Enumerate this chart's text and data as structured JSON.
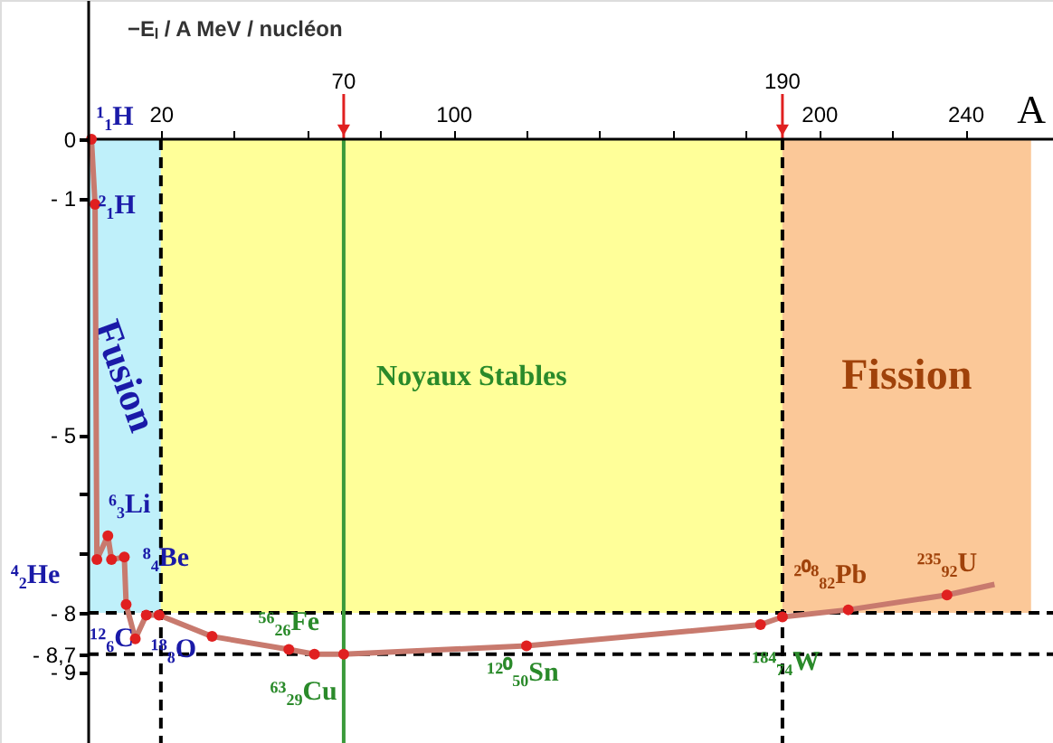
{
  "chart_data": {
    "type": "scatter",
    "xlabel": "A",
    "ylabel": "−Eₗ / A   MeV / nucléon",
    "xlim": [
      -24,
      264
    ],
    "ylim": [
      -10.2,
      2.35
    ],
    "xticks": [
      20,
      {
        "value": 40,
        "label": null
      },
      {
        "value": 60,
        "label": null
      },
      {
        "value": 80,
        "label": null
      },
      100,
      {
        "value": 120,
        "label": null
      },
      {
        "value": 140,
        "label": null
      },
      {
        "value": 160,
        "label": null
      },
      {
        "value": 180,
        "label": null
      },
      200,
      {
        "value": 220,
        "label": null
      },
      240
    ],
    "yticks": [
      0,
      {
        "value": -1,
        "label": "- 1"
      },
      {
        "value": -5,
        "label": "- 5"
      },
      {
        "value": -6,
        "label": null
      },
      {
        "value": -7,
        "label": null
      },
      {
        "value": -8,
        "label": "- 8"
      },
      {
        "value": -8.7,
        "label": "- 8,7"
      },
      {
        "value": -9,
        "label": "- 9"
      }
    ],
    "grid": false,
    "series": [
      {
        "type": "line",
        "color": "#c87a6e",
        "line_style": "solid",
        "x": [
          1,
          2,
          2.5,
          5.5,
          6.5,
          10,
          10.5,
          13,
          16,
          19.5,
          34,
          55,
          62,
          70,
          120,
          184,
          190,
          208,
          235,
          248
        ],
        "values": [
          0,
          -1.1,
          -7.1,
          -6.7,
          -7.1,
          -7.06,
          -7.86,
          -8.44,
          -8.04,
          -8.04,
          -8.4,
          -8.62,
          -8.7,
          -8.7,
          -8.56,
          -8.2,
          -8.07,
          -7.95,
          -7.7,
          -7.52
        ]
      },
      {
        "color": "#e02020",
        "marker": "circle",
        "x": [
          1,
          2,
          2.5,
          5.5,
          6.5,
          10,
          10.5,
          13,
          16,
          19.5,
          34,
          55,
          62,
          70,
          120,
          184,
          190,
          208,
          235
        ],
        "values": [
          0,
          -1.1,
          -7.1,
          -6.7,
          -7.1,
          -7.06,
          -7.86,
          -8.44,
          -8.04,
          -8.04,
          -8.4,
          -8.62,
          -8.7,
          -8.7,
          -8.56,
          -8.2,
          -8.07,
          -7.95,
          -7.7
        ]
      }
    ],
    "bands": [
      {
        "axis": "x",
        "from": 0,
        "to": 20,
        "label": "Fusion",
        "color": "#bff0fa"
      },
      {
        "axis": "x",
        "from": 20,
        "to": 190,
        "label": "Noyaux Stables",
        "color": "#ffff99"
      },
      {
        "axis": "x",
        "from": 190,
        "to": 258,
        "label": "Fission",
        "color": "#fbc898"
      }
    ],
    "ref_lines": [
      {
        "axis": "y",
        "value": -8,
        "label": null,
        "color": "#000000",
        "line_style": "dashed"
      },
      {
        "axis": "y",
        "value": -8.7,
        "label": null,
        "color": "#000000",
        "line_style": "dashed"
      },
      {
        "axis": "x",
        "value": 20,
        "label": null,
        "color": "#000000",
        "line_style": "dashed"
      },
      {
        "axis": "x",
        "value": 70,
        "label": "70",
        "color": "#3a9a3a",
        "line_style": "solid"
      },
      {
        "axis": "x",
        "value": 190,
        "label": "190",
        "color": "#000000",
        "line_style": "dashed"
      }
    ],
    "annotations": [
      {
        "text": "¹₁H",
        "x": 1,
        "y": 0
      },
      {
        "text": "²₁H",
        "x": 2,
        "y": -1.1
      },
      {
        "text": "⁶₃Li",
        "x": 5.5,
        "y": -6.7
      },
      {
        "text": "⁸₄Be",
        "x": 10,
        "y": -7.06
      },
      {
        "text": "⁴₂He",
        "x": 2.5,
        "y": -7.1
      },
      {
        "text": "¹²₆C",
        "x": 13,
        "y": -8.44
      },
      {
        "text": "¹⁸₈O",
        "x": 19.5,
        "y": -8.04
      },
      {
        "text": "⁵⁶₂₆Fe",
        "x": 55,
        "y": -8.62
      },
      {
        "text": "⁶³₂₉Cu",
        "x": 62,
        "y": -8.7
      },
      {
        "text": "¹²⁰₅₀Sn",
        "x": 120,
        "y": -8.56
      },
      {
        "text": "¹⁸⁴₇₄W",
        "x": 184,
        "y": -8.2
      },
      {
        "text": "²⁰⁸₈₂Pb",
        "x": 208,
        "y": -7.95
      },
      {
        "text": "²³⁵₉₂U",
        "x": 235,
        "y": -7.7
      }
    ]
  }
}
